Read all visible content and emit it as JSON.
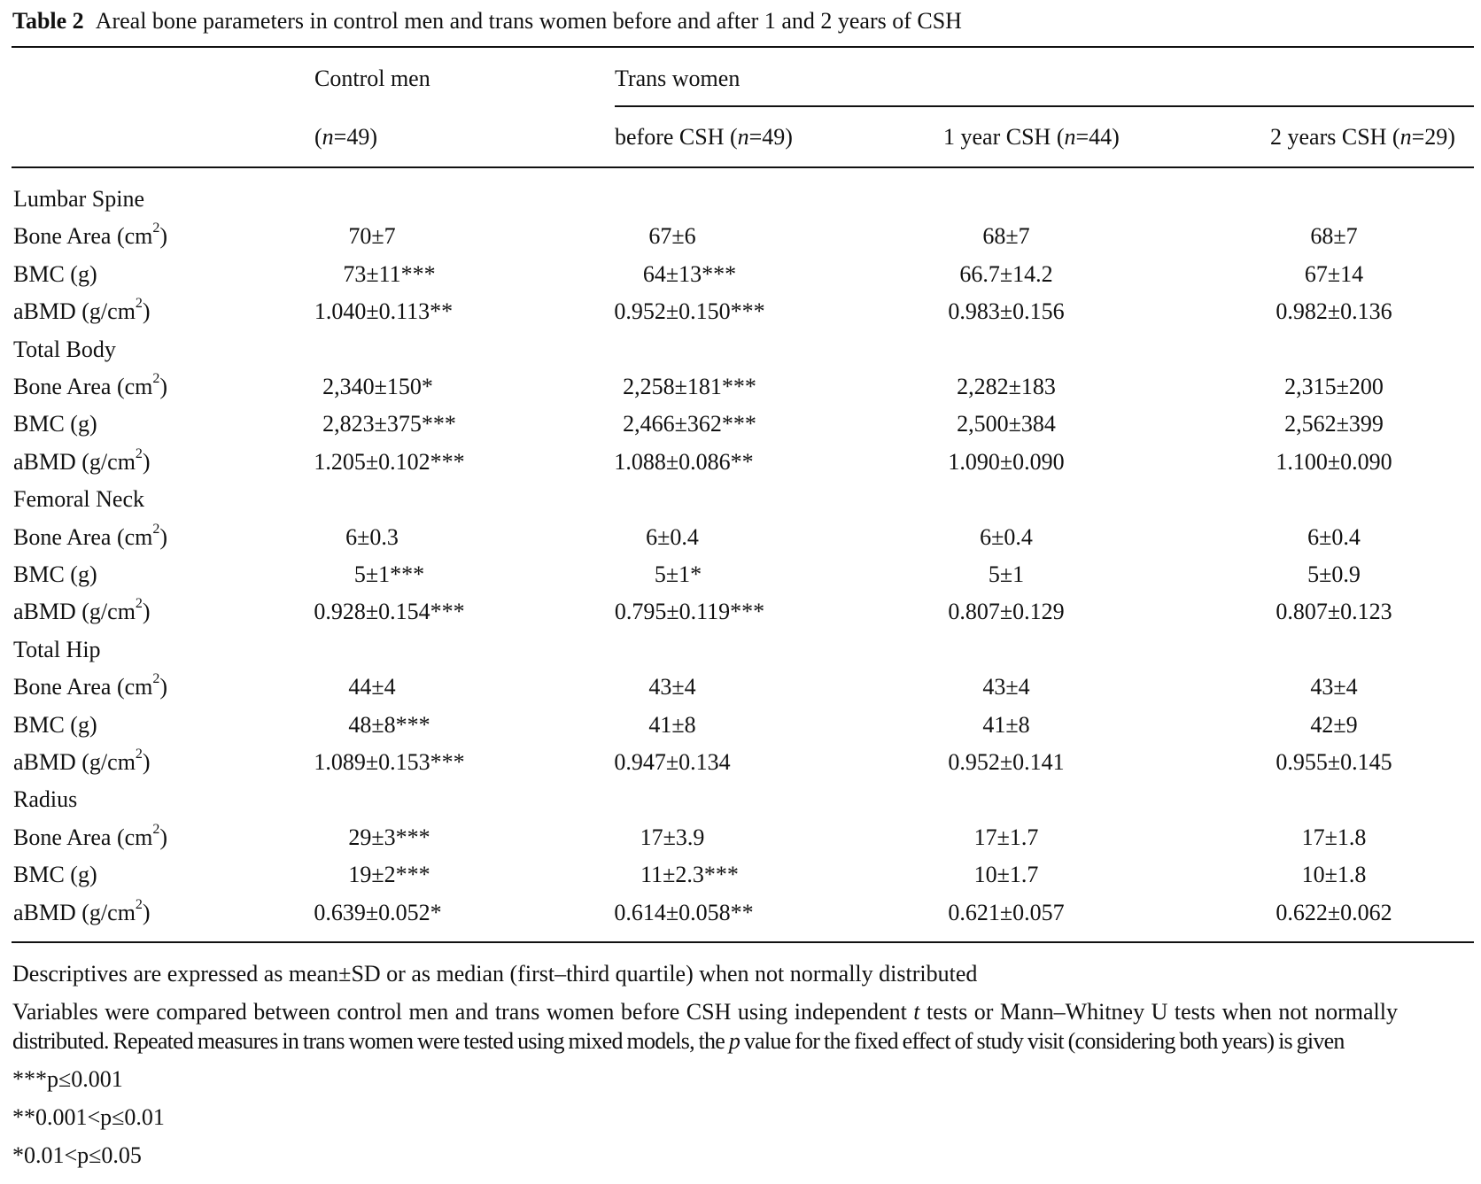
{
  "title": {
    "label": "Table 2",
    "text": "Areal bone parameters in control men and trans women before and after 1 and 2 years of CSH"
  },
  "header": {
    "group1": "Control men",
    "group2": "Trans women",
    "columns": [
      {
        "pre": "(",
        "n": "n",
        "post": "=49)"
      },
      {
        "pre": "before CSH (",
        "n": "n",
        "post": "=49)"
      },
      {
        "pre": "1 year CSH (",
        "n": "n",
        "post": "=44)"
      },
      {
        "pre": "2 years CSH (",
        "n": "n",
        "post": "=29)"
      }
    ]
  },
  "sections": [
    {
      "name": "Lumbar Spine",
      "rows": [
        {
          "label": "Bone Area (cm",
          "sup": "2",
          "tail": ")",
          "values": [
            "70±7",
            "67±6",
            "68±7",
            "68±7"
          ]
        },
        {
          "label": "BMC (g)",
          "values": [
            "73±11***",
            "64±13***",
            "66.7±14.2",
            "67±14"
          ]
        },
        {
          "label": "aBMD (g/cm",
          "sup": "2",
          "tail": ")",
          "values": [
            "1.040±0.113**",
            "0.952±0.150***",
            "0.983±0.156",
            "0.982±0.136"
          ]
        }
      ]
    },
    {
      "name": "Total Body",
      "rows": [
        {
          "label": "Bone Area (cm",
          "sup": "2",
          "tail": ")",
          "values": [
            "2,340±150*",
            "2,258±181***",
            "2,282±183",
            "2,315±200"
          ]
        },
        {
          "label": "BMC (g)",
          "values": [
            "2,823±375***",
            "2,466±362***",
            "2,500±384",
            "2,562±399"
          ]
        },
        {
          "label": "aBMD (g/cm",
          "sup": "2",
          "tail": ")",
          "values": [
            "1.205±0.102***",
            "1.088±0.086**",
            "1.090±0.090",
            "1.100±0.090"
          ]
        }
      ]
    },
    {
      "name": "Femoral Neck",
      "rows": [
        {
          "label": "Bone Area (cm",
          "sup": "2",
          "tail": ")",
          "values": [
            "6±0.3",
            "6±0.4",
            "6±0.4",
            "6±0.4"
          ]
        },
        {
          "label": "BMC (g)",
          "values": [
            "5±1***",
            "5±1*",
            "5±1",
            "5±0.9"
          ]
        },
        {
          "label": "aBMD (g/cm",
          "sup": "2",
          "tail": ")",
          "values": [
            "0.928±0.154***",
            "0.795±0.119***",
            "0.807±0.129",
            "0.807±0.123"
          ]
        }
      ]
    },
    {
      "name": "Total Hip",
      "rows": [
        {
          "label": "Bone Area (cm",
          "sup": "2",
          "tail": ")",
          "values": [
            "44±4",
            "43±4",
            "43±4",
            "43±4"
          ]
        },
        {
          "label": "BMC (g)",
          "values": [
            "48±8***",
            "41±8",
            "41±8",
            "42±9"
          ]
        },
        {
          "label": "aBMD (g/cm",
          "sup": "2",
          "tail": ")",
          "values": [
            "1.089±0.153***",
            "0.947±0.134",
            "0.952±0.141",
            "0.955±0.145"
          ]
        }
      ]
    },
    {
      "name": "Radius",
      "rows": [
        {
          "label": "Bone Area (cm",
          "sup": "2",
          "tail": ")",
          "values": [
            "29±3***",
            "17±3.9",
            "17±1.7",
            "17±1.8"
          ]
        },
        {
          "label": "BMC (g)",
          "values": [
            "19±2***",
            "11±2.3***",
            "10±1.7",
            "10±1.8"
          ]
        },
        {
          "label": "aBMD (g/cm",
          "sup": "2",
          "tail": ")",
          "values": [
            "0.639±0.052*",
            "0.614±0.058**",
            "0.621±0.057",
            "0.622±0.062"
          ]
        }
      ]
    }
  ],
  "footnotes": {
    "descriptives": "Descriptives are expressed as mean±SD or as median (first–third quartile) when not normally distributed",
    "methods_a": "Variables were compared between control men and trans women before CSH using independent ",
    "methods_t": "t",
    "methods_b": " tests or Mann–Whitney U tests when not normally",
    "methods_c": "distributed. Repeated measures in trans women were tested using mixed models, the ",
    "methods_p": "p",
    "methods_d": " value for the fixed effect of study visit (considering both years) is given",
    "sig": [
      "***p≤0.001",
      "**0.001<p≤0.01",
      "*0.01<p≤0.05"
    ]
  }
}
